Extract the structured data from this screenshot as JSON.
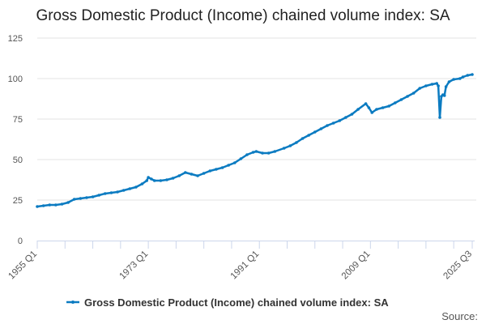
{
  "chart_data": {
    "type": "line",
    "title": "Gross Domestic Product (Income) chained volume index: SA",
    "xlabel": "",
    "ylabel": "",
    "ylim": [
      0,
      125
    ],
    "yticks": [
      0,
      25,
      50,
      75,
      100,
      125
    ],
    "xlim": [
      1955.0,
      2025.5
    ],
    "xtick_labels": [
      {
        "label": "1955 Q1",
        "x": 1955.0
      },
      {
        "label": "1973 Q1",
        "x": 1973.0
      },
      {
        "label": "1991 Q1",
        "x": 1991.0
      },
      {
        "label": "2009 Q1",
        "x": 2009.0
      },
      {
        "label": "2025 Q3",
        "x": 2025.5
      }
    ],
    "grid": "horizontal",
    "legend": {
      "position": "bottom",
      "entries": [
        "Gross Domestic Product (Income) chained volume index: SA"
      ]
    },
    "source_label": "Source:",
    "color": "#0b7bc1",
    "series": [
      {
        "name": "Gross Domestic Product (Income) chained volume index: SA",
        "points": [
          [
            1955.0,
            21
          ],
          [
            1956,
            21.5
          ],
          [
            1957,
            22
          ],
          [
            1958,
            22
          ],
          [
            1959,
            22.5
          ],
          [
            1960,
            23.5
          ],
          [
            1961,
            25.5
          ],
          [
            1962,
            26
          ],
          [
            1963,
            26.5
          ],
          [
            1964,
            27
          ],
          [
            1965,
            28
          ],
          [
            1966,
            29
          ],
          [
            1967,
            29.5
          ],
          [
            1968,
            30
          ],
          [
            1969,
            31
          ],
          [
            1970,
            32
          ],
          [
            1971,
            33
          ],
          [
            1972,
            35
          ],
          [
            1972.75,
            37
          ],
          [
            1973.0,
            39
          ],
          [
            1973.5,
            38
          ],
          [
            1974,
            37
          ],
          [
            1975,
            37
          ],
          [
            1976,
            37.5
          ],
          [
            1977,
            38.5
          ],
          [
            1978,
            40
          ],
          [
            1979,
            42
          ],
          [
            1980,
            41
          ],
          [
            1981,
            40
          ],
          [
            1982,
            41.5
          ],
          [
            1983,
            43
          ],
          [
            1984,
            44
          ],
          [
            1985,
            45
          ],
          [
            1986,
            46.5
          ],
          [
            1987,
            48
          ],
          [
            1988,
            50.5
          ],
          [
            1989,
            53
          ],
          [
            1990,
            54.5
          ],
          [
            1990.5,
            55
          ],
          [
            1991.5,
            54
          ],
          [
            1992.5,
            54
          ],
          [
            1993.5,
            55
          ],
          [
            1995,
            57
          ],
          [
            1996,
            58.5
          ],
          [
            1997,
            60.5
          ],
          [
            1998,
            63
          ],
          [
            1999,
            65
          ],
          [
            2000,
            67
          ],
          [
            2001,
            69
          ],
          [
            2002,
            71
          ],
          [
            2003,
            72.5
          ],
          [
            2004,
            74
          ],
          [
            2005,
            76
          ],
          [
            2006,
            78
          ],
          [
            2007,
            81
          ],
          [
            2008.25,
            84.5
          ],
          [
            2008.75,
            82
          ],
          [
            2009.25,
            79
          ],
          [
            2010,
            81
          ],
          [
            2011,
            82
          ],
          [
            2012,
            83
          ],
          [
            2013,
            85
          ],
          [
            2014,
            87
          ],
          [
            2015,
            89
          ],
          [
            2016,
            91
          ],
          [
            2017,
            94
          ],
          [
            2018,
            95.5
          ],
          [
            2019,
            96.5
          ],
          [
            2019.75,
            97
          ],
          [
            2020.0,
            95.5
          ],
          [
            2020.25,
            76
          ],
          [
            2020.5,
            89
          ],
          [
            2020.75,
            90
          ],
          [
            2021.0,
            89.5
          ],
          [
            2021.25,
            95
          ],
          [
            2021.75,
            98
          ],
          [
            2022.5,
            99.5
          ],
          [
            2023.5,
            100
          ],
          [
            2024,
            101
          ],
          [
            2024.75,
            102
          ],
          [
            2025.5,
            102.5
          ]
        ]
      }
    ]
  }
}
